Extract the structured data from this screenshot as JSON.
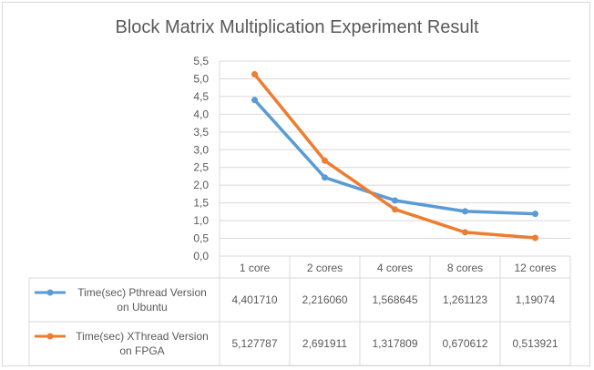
{
  "chart_data": {
    "type": "line",
    "title": "Block Matrix Multiplication Experiment Result",
    "categories": [
      "1 core",
      "2 cores",
      "4 cores",
      "8 cores",
      "12 cores"
    ],
    "y_ticks": [
      "0,0",
      "0,5",
      "1,0",
      "1,5",
      "2,0",
      "2,5",
      "3,0",
      "3,5",
      "4,0",
      "4,5",
      "5,0",
      "5,5"
    ],
    "ylim": [
      0,
      5.5
    ],
    "grid": true,
    "legend": "data-table-left",
    "series": [
      {
        "name_lines": [
          "Time(sec) Pthread Version",
          "on Ubuntu"
        ],
        "color": "#5b9bd5",
        "values": [
          4.40171,
          2.21606,
          1.568645,
          1.261123,
          1.19074
        ],
        "labels": [
          "4,401710",
          "2,216060",
          "1,568645",
          "1,261123",
          "1,19074"
        ]
      },
      {
        "name_lines": [
          "Time(sec) XThread Version",
          "on FPGA"
        ],
        "color": "#ed7d31",
        "values": [
          5.127787,
          2.691911,
          1.317809,
          0.670612,
          0.513921
        ],
        "labels": [
          "5,127787",
          "2,691911",
          "1,317809",
          "0,670612",
          "0,513921"
        ]
      }
    ]
  }
}
